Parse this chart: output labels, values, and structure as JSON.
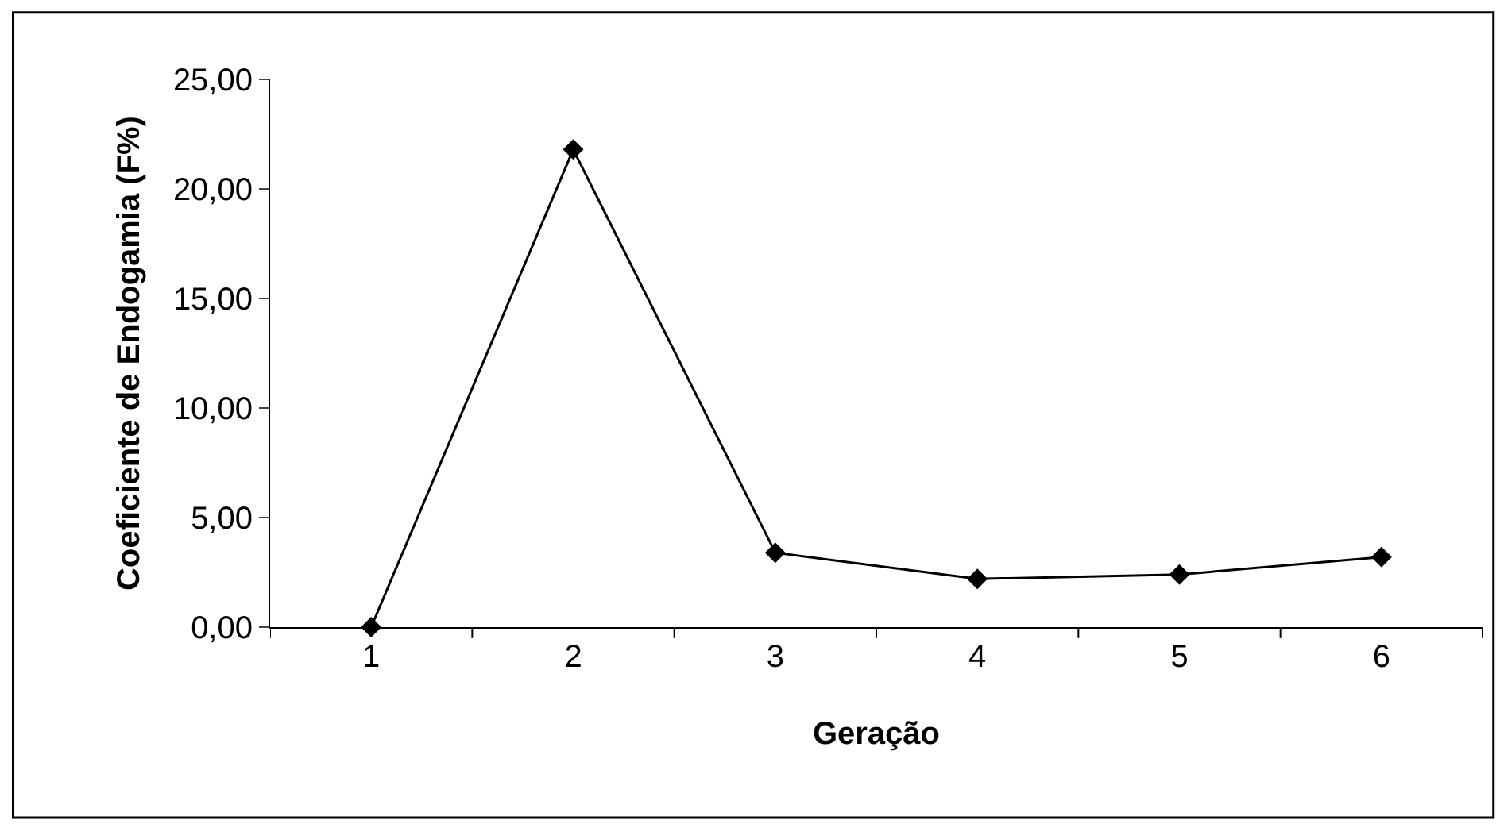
{
  "chart_data": {
    "type": "line",
    "xlabel": "Geração",
    "ylabel": "Coeficiente de Endogamia (F%)",
    "categories": [
      "1",
      "2",
      "3",
      "4",
      "5",
      "6"
    ],
    "series": [
      {
        "color": "#000000",
        "values": [
          0.0,
          21.8,
          3.4,
          2.2,
          2.4,
          3.2
        ]
      }
    ],
    "ylim": [
      0,
      25
    ],
    "yticks": [
      {
        "value": 0,
        "label": "0,00"
      },
      {
        "value": 5,
        "label": "5,00"
      },
      {
        "value": 10,
        "label": "10,00"
      },
      {
        "value": 15,
        "label": "15,00"
      },
      {
        "value": 20,
        "label": "20,00"
      },
      {
        "value": 25,
        "label": "25,00"
      }
    ],
    "marker": "diamond",
    "line_style": "solid"
  }
}
